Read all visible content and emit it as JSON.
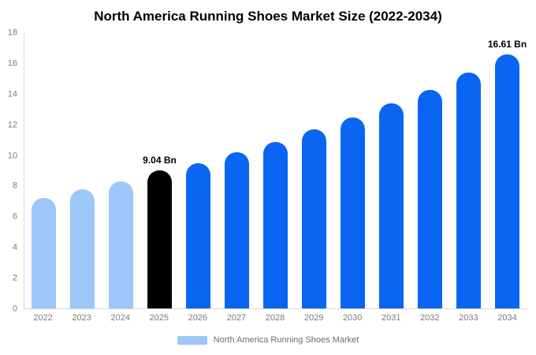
{
  "title": "North America Running Shoes Market Size (2022-2034)",
  "chart_data": {
    "type": "bar",
    "categories": [
      "2022",
      "2023",
      "2024",
      "2025",
      "2026",
      "2027",
      "2028",
      "2029",
      "2030",
      "2031",
      "2032",
      "2033",
      "2034"
    ],
    "values": [
      7.2,
      7.8,
      8.3,
      9.04,
      9.5,
      10.2,
      10.9,
      11.7,
      12.5,
      13.4,
      14.3,
      15.4,
      16.61
    ],
    "bar_colors": [
      "#9CC7F8",
      "#9CC7F8",
      "#9CC7F8",
      "#000000",
      "#0A66F2",
      "#0A66F2",
      "#0A66F2",
      "#0A66F2",
      "#0A66F2",
      "#0A66F2",
      "#0A66F2",
      "#0A66F2",
      "#0A66F2"
    ],
    "ylim": [
      0,
      18
    ],
    "yticks": [
      0,
      2,
      4,
      6,
      8,
      10,
      12,
      14,
      16,
      18
    ],
    "grid": false,
    "annotations": [
      {
        "category": "2025",
        "text": "9.04 Bn"
      },
      {
        "category": "2034",
        "text": "16.61 Bn"
      }
    ],
    "legend": {
      "label": "North America Running Shoes Market",
      "swatch_color": "#9CC7F8",
      "position": "bottom"
    },
    "colors": {
      "historic_light_blue": "#9CC7F8",
      "base_year_black": "#000000",
      "forecast_blue": "#0A66F2",
      "axis_text_gray": "#7a7a7a"
    },
    "xlabel": "",
    "ylabel": ""
  }
}
